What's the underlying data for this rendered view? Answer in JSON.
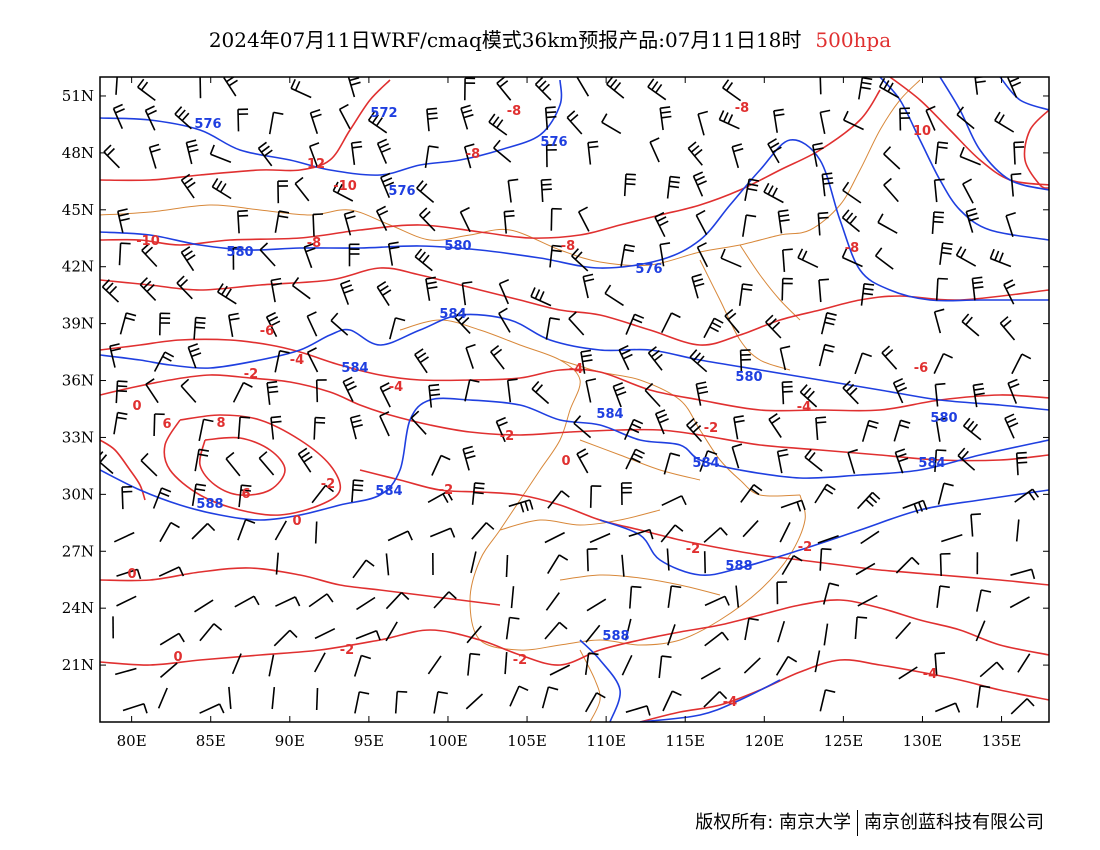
{
  "title": {
    "main": "2024年07月11日WRF/cmaq模式36km预报产品:07月11日18时",
    "level": "500hpa"
  },
  "map": {
    "lon_range": [
      78,
      138
    ],
    "lat_range": [
      18,
      52
    ],
    "lon_ticks": [
      "80E",
      "85E",
      "90E",
      "95E",
      "100E",
      "105E",
      "110E",
      "115E",
      "120E",
      "125E",
      "130E",
      "135E"
    ],
    "lat_ticks": [
      "51N",
      "48N",
      "45N",
      "42N",
      "39N",
      "36N",
      "33N",
      "30N",
      "27N",
      "24N",
      "21N"
    ],
    "colors": {
      "height": "#1f3fe0",
      "temperature": "#e03030",
      "boundary": "#d8883a",
      "wind": "#000000"
    },
    "height_labels": [
      "576",
      "572",
      "576",
      "576",
      "580",
      "580",
      "576",
      "584",
      "584",
      "580",
      "584",
      "580",
      "584",
      "584",
      "584",
      "588",
      "588",
      "588"
    ],
    "temperature_labels": [
      "-8",
      "-8",
      "12",
      "-10",
      "10",
      "-10",
      "-8",
      "-8",
      "-8",
      "-8",
      "-6",
      "-4",
      "-2",
      "-6",
      "-4",
      "-4",
      "0",
      "6",
      "8",
      "-4",
      "-2",
      "-2",
      "0",
      "6",
      "0",
      "-2",
      "-2",
      "0",
      "0",
      "-2",
      "-2",
      "-2",
      "-2",
      "-4",
      "-4"
    ]
  },
  "copyright": {
    "left": "版权所有: 南京大学",
    "right": "南京创蓝科技有限公司"
  }
}
